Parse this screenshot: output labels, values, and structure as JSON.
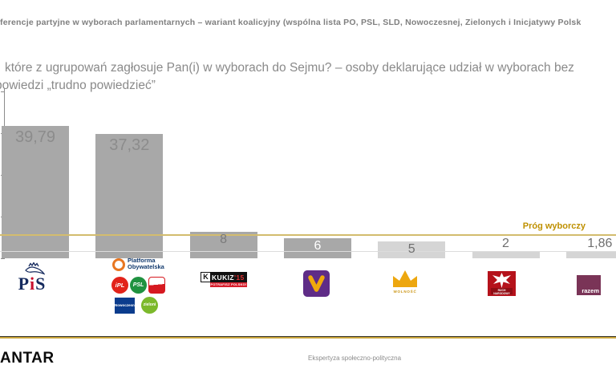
{
  "slide": {
    "title": "ferencje partyjne w wyborach parlamentarnych – wariant koalicyjny (wspólna lista PO, PSL, SLD, Nowoczesnej, Zielonych i Inicjatywy Polsk",
    "question_line1": "które z ugrupowań zagłosuje Pan(i) w wyborach do Sejmu? – osoby deklarujące udział w wyborach bez",
    "question_line2": "powiedzi „trudno powiedzieć”"
  },
  "chart_data": {
    "type": "bar",
    "title": "",
    "xlabel": "",
    "ylabel": "",
    "categories": [
      "PiS",
      "Koalicja: Platforma Obywatelska, iPL, PSL, SLD, Nowoczesna, Zieloni",
      "Kukiz'15",
      "Wiosna",
      "Wolność",
      "Ruch Narodowy",
      "Razem"
    ],
    "ids": [
      "pis",
      "koalicja-po",
      "kukiz15",
      "wiosna",
      "wolnosc",
      "ruch-narodowy",
      "razem"
    ],
    "values": [
      39.79,
      37.32,
      8,
      6,
      5,
      2,
      1.86
    ],
    "value_labels": [
      "39,79",
      "37,32",
      "8",
      "6",
      "5",
      "2",
      "1,86"
    ],
    "bar_colors": [
      "#a8a8a8",
      "#a8a8a8",
      "#a8a8a8",
      "#a8a8a8",
      "#d5d5d5",
      "#d5d5d5",
      "#d5d5d5"
    ],
    "value_label_colors": [
      "#8c8c8c",
      "#8c8c8c",
      "#7a7a7a",
      "#ffffff",
      "#6f6f6f",
      "#6f6f6f",
      "#6f6f6f"
    ],
    "ylim": [
      0,
      50
    ],
    "y_tick_step": 12.5,
    "y_tick_labels_visible": false,
    "grid": "single light horizontal gridline near axis",
    "legend_position": "none",
    "threshold_line": {
      "label": "Próg wyborczy",
      "value": 7.2,
      "line_color": "#d3bc6e",
      "label_color": "#bf9000"
    }
  },
  "logos": {
    "pis": {
      "p": "P",
      "i": "i",
      "s": "S"
    },
    "po": {
      "line1": "Platforma",
      "line2": "Obywatelska"
    },
    "ipl": {
      "text": "iPL"
    },
    "psl": {
      "text": "PSL"
    },
    "nowoczesna": {
      "text": "Nowoczesna"
    },
    "zieloni": {
      "text": "zieloni"
    },
    "kukiz": {
      "k": "K",
      "name": "KUKIZ",
      "num": "'15",
      "slogan": "POTRAFISZ POLSKO!"
    },
    "wolnosc": {
      "text": "WOLNOŚĆ"
    },
    "ruch_narodowy": {
      "line1": "RUCH",
      "line2": "NARODOWY"
    },
    "razem": {
      "text": "razem"
    }
  },
  "footer": {
    "brand": "ANTAR",
    "note": "Ekspertyza społeczno-polityczna"
  }
}
